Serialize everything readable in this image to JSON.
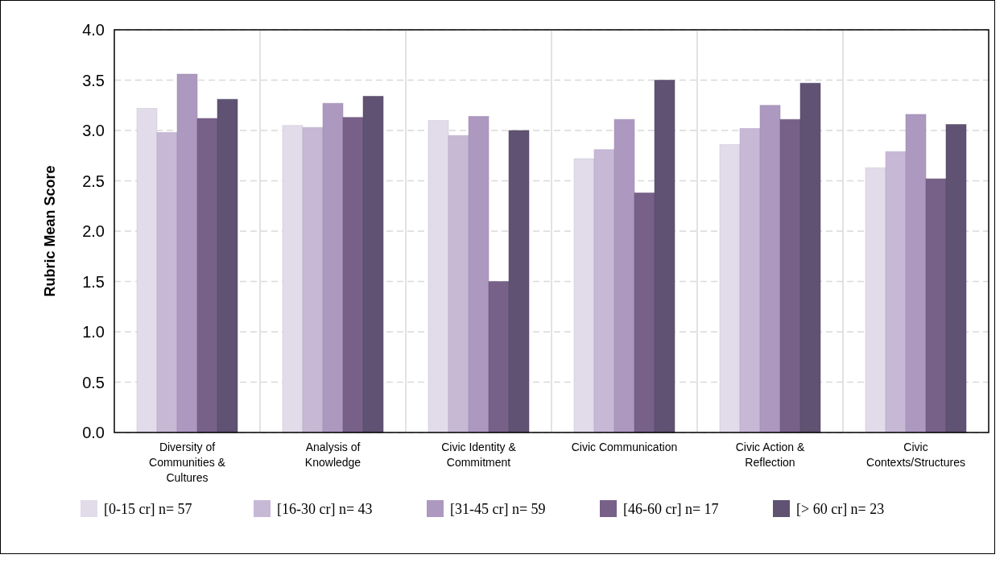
{
  "chart_data": {
    "type": "bar",
    "ylabel": "Rubric Mean Score",
    "categories": [
      "Diversity of Communities & Cultures",
      "Analysis of Knowledge",
      "Civic Identity & Commitment",
      "Civic Communication",
      "Civic Action & Reflection",
      "Civic Contexts/Structures"
    ],
    "series": [
      {
        "name": "[0-15 cr] n= 57",
        "color": "#e1dbea",
        "values": [
          3.22,
          3.05,
          3.1,
          2.72,
          2.86,
          2.63
        ]
      },
      {
        "name": "[16-30 cr] n= 43",
        "color": "#c7b8d6",
        "values": [
          2.98,
          3.03,
          2.95,
          2.81,
          3.02,
          2.79
        ]
      },
      {
        "name": "[31-45 cr] n= 59",
        "color": "#ad98c0",
        "values": [
          3.56,
          3.27,
          3.14,
          3.11,
          3.25,
          3.16
        ]
      },
      {
        "name": "[46-60 cr] n= 17",
        "color": "#776189",
        "values": [
          3.12,
          3.13,
          1.5,
          2.38,
          3.11,
          2.52
        ]
      },
      {
        "name": "[> 60 cr] n= 23",
        "color": "#5f5272",
        "values": [
          3.31,
          3.34,
          3.0,
          3.5,
          3.47,
          3.06
        ]
      }
    ],
    "ylim": [
      0,
      4
    ],
    "yticks": [
      {
        "value": 0,
        "label": "0.0"
      },
      {
        "value": 0.5,
        "label": "0.5"
      },
      {
        "value": 1,
        "label": "1.0"
      },
      {
        "value": 1.5,
        "label": "1.5"
      },
      {
        "value": 2,
        "label": "2.0"
      },
      {
        "value": 2.5,
        "label": "2.5"
      },
      {
        "value": 3,
        "label": "3.0"
      },
      {
        "value": 3.5,
        "label": "3.5"
      },
      {
        "value": 4,
        "label": "4.0"
      }
    ],
    "grid": "y",
    "legend": "bottom"
  }
}
